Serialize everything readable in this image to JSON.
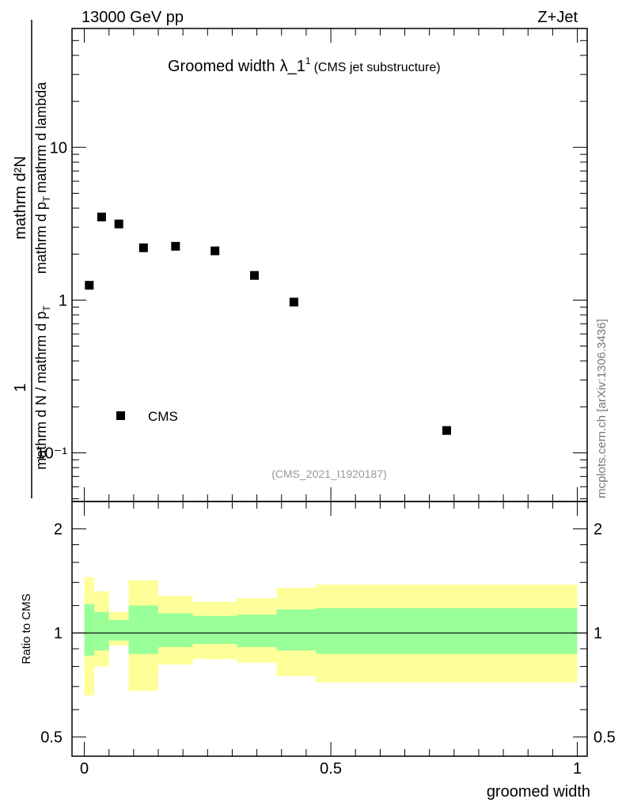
{
  "header": {
    "energy_label": "13000 GeV pp",
    "process_label": "Z+Jet",
    "watermark": "mcplots.cern.ch [arXiv:1306.3436]"
  },
  "chart_data": [
    {
      "type": "scatter",
      "panel": "main",
      "title": "Groomed width",
      "title_symbol": "λ_1",
      "title_superscript": "1",
      "subtitle": "(CMS jet substructure)",
      "analysis_id": "(CMS_2021_I1920187)",
      "ylabel_numerator": "mathrm d²N",
      "ylabel_sub_numerator": "1",
      "ylabel_sub_denominator": "mathrm d N / mathrm d p",
      "ylabel_denominator_main": "mathrm d p",
      "ylabel_denominator_tail": "mathrm d lambda",
      "ylabel_subscript": "T",
      "yscale": "log",
      "ylim": [
        0.048,
        60
      ],
      "xlim": [
        -0.025,
        1.02
      ],
      "y_tick_labels": [
        "10⁻¹",
        "1",
        "10"
      ],
      "y_tick_values": [
        0.1,
        1,
        10
      ],
      "legend_label": "CMS",
      "legend_position": "bottom-left",
      "series": [
        {
          "name": "CMS",
          "x": [
            0.01,
            0.035,
            0.07,
            0.12,
            0.185,
            0.265,
            0.345,
            0.425,
            0.735
          ],
          "y": [
            1.25,
            3.5,
            3.15,
            2.2,
            2.25,
            2.1,
            1.45,
            0.97,
            0.14
          ]
        }
      ]
    },
    {
      "type": "area",
      "panel": "ratio",
      "ylabel": "Ratio to CMS",
      "xlabel": "groomed width",
      "yscale": "log",
      "ylim": [
        0.44,
        2.4
      ],
      "xlim": [
        -0.025,
        1.02
      ],
      "x_tick_labels": [
        "0",
        "0.5",
        "1"
      ],
      "x_tick_values": [
        0,
        0.5,
        1
      ],
      "y_tick_labels": [
        "0.5",
        "1",
        "2"
      ],
      "y_tick_values": [
        0.5,
        1,
        2
      ],
      "reference_line": 1,
      "bins": [
        {
          "lo": 0.0,
          "hi": 0.02,
          "stat_lo": 0.86,
          "stat_hi": 1.21,
          "tot_lo": 0.66,
          "tot_hi": 1.45
        },
        {
          "lo": 0.02,
          "hi": 0.05,
          "stat_lo": 0.89,
          "stat_hi": 1.15,
          "tot_lo": 0.8,
          "tot_hi": 1.32
        },
        {
          "lo": 0.05,
          "hi": 0.09,
          "stat_lo": 0.95,
          "stat_hi": 1.09,
          "tot_lo": 0.92,
          "tot_hi": 1.15
        },
        {
          "lo": 0.09,
          "hi": 0.15,
          "stat_lo": 0.87,
          "stat_hi": 1.2,
          "tot_lo": 0.68,
          "tot_hi": 1.42
        },
        {
          "lo": 0.15,
          "hi": 0.22,
          "stat_lo": 0.91,
          "stat_hi": 1.14,
          "tot_lo": 0.81,
          "tot_hi": 1.28
        },
        {
          "lo": 0.22,
          "hi": 0.31,
          "stat_lo": 0.93,
          "stat_hi": 1.12,
          "tot_lo": 0.84,
          "tot_hi": 1.23
        },
        {
          "lo": 0.31,
          "hi": 0.39,
          "stat_lo": 0.91,
          "stat_hi": 1.13,
          "tot_lo": 0.82,
          "tot_hi": 1.26
        },
        {
          "lo": 0.39,
          "hi": 0.47,
          "stat_lo": 0.89,
          "stat_hi": 1.17,
          "tot_lo": 0.75,
          "tot_hi": 1.35
        },
        {
          "lo": 0.47,
          "hi": 1.0,
          "stat_lo": 0.87,
          "stat_hi": 1.18,
          "tot_lo": 0.72,
          "tot_hi": 1.38
        }
      ],
      "colors": {
        "stat": "#99ff99",
        "total": "#ffff99",
        "line": "#000000",
        "marker": "#000000"
      }
    }
  ]
}
